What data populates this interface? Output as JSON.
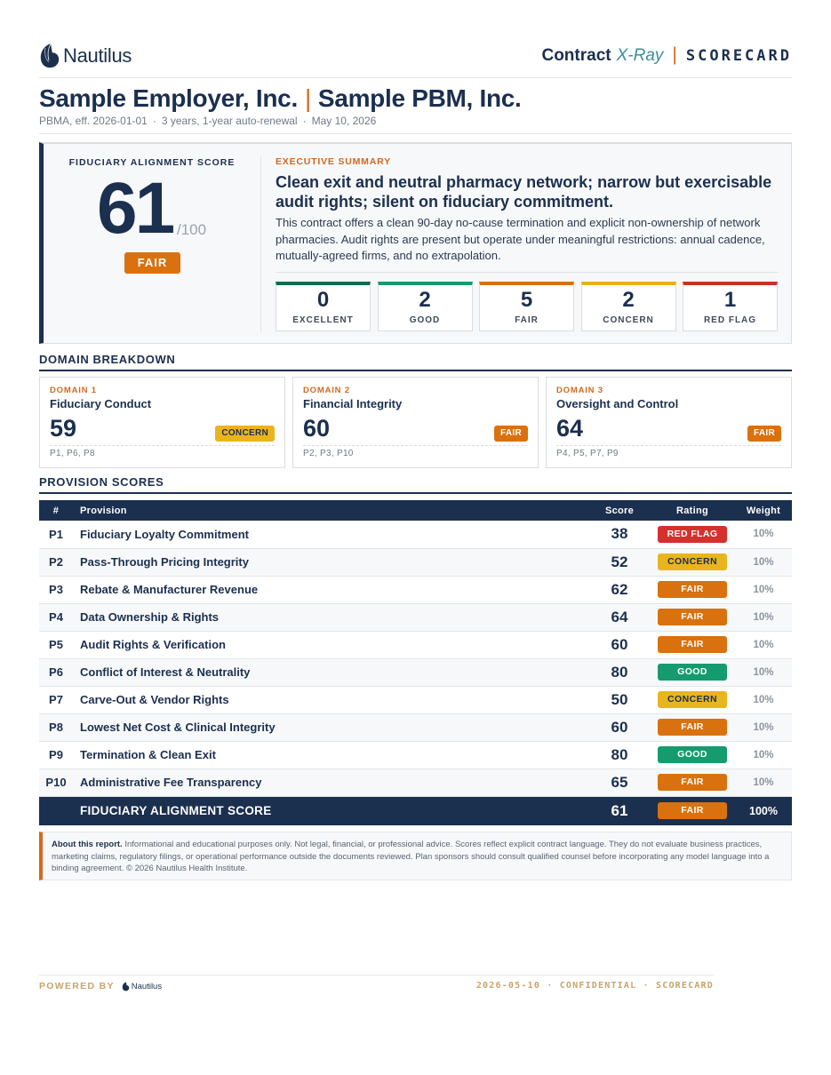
{
  "header": {
    "logo_text": "Nautilus",
    "brand_contract": "Contract",
    "brand_xray": "X-Ray",
    "brand_sep": "|",
    "brand_scorecard": "SCORECARD"
  },
  "title": {
    "employer": "Sample Employer, Inc.",
    "separator": "|",
    "pbm": "Sample PBM, Inc."
  },
  "subtitle": {
    "agreement": "PBMA, eff. 2026-01-01",
    "term": "3 years, 1-year auto-renewal",
    "date": "May 10, 2026",
    "dot": "·"
  },
  "score_hero": {
    "label": "FIDUCIARY ALIGNMENT SCORE",
    "score": "61",
    "denominator": "/100",
    "rating": "FAIR"
  },
  "executive_summary": {
    "label": "EXECUTIVE SUMMARY",
    "headline": "Clean exit and neutral pharmacy network; narrow but exercisable audit rights; silent on fiduciary commitment.",
    "body": "This contract offers a clean 90-day no-cause termination and explicit non-ownership of network pharmacies. Audit rights are present but operate under meaningful restrictions: annual cadence, mutually-agreed firms, and no extrapolation."
  },
  "rating_counts": [
    {
      "count": "0",
      "label": "EXCELLENT",
      "color": "#0e6b4f"
    },
    {
      "count": "2",
      "label": "GOOD",
      "color": "#159a72"
    },
    {
      "count": "5",
      "label": "FAIR",
      "color": "#d9710f"
    },
    {
      "count": "2",
      "label": "CONCERN",
      "color": "#e6b020"
    },
    {
      "count": "1",
      "label": "RED FLAG",
      "color": "#c9302c"
    }
  ],
  "domain_section": {
    "title": "DOMAIN BREAKDOWN",
    "domains": [
      {
        "num": "DOMAIN 1",
        "name": "Fiduciary Conduct",
        "score": "59",
        "rating": "CONCERN",
        "provisions": "P1, P6, P8"
      },
      {
        "num": "DOMAIN 2",
        "name": "Financial Integrity",
        "score": "60",
        "rating": "FAIR",
        "provisions": "P2, P3, P10"
      },
      {
        "num": "DOMAIN 3",
        "name": "Oversight and Control",
        "score": "64",
        "rating": "FAIR",
        "provisions": "P4, P5, P7, P9"
      }
    ]
  },
  "provision_section": {
    "title": "PROVISION SCORES",
    "headers": {
      "num": "#",
      "name": "Provision",
      "score": "Score",
      "rating": "Rating",
      "weight": "Weight"
    },
    "rows": [
      {
        "id": "P1",
        "name": "Fiduciary Loyalty Commitment",
        "score": "38",
        "rating": "RED FLAG",
        "weight": "10%"
      },
      {
        "id": "P2",
        "name": "Pass-Through Pricing Integrity",
        "score": "52",
        "rating": "CONCERN",
        "weight": "10%"
      },
      {
        "id": "P3",
        "name": "Rebate & Manufacturer Revenue",
        "score": "62",
        "rating": "FAIR",
        "weight": "10%"
      },
      {
        "id": "P4",
        "name": "Data Ownership & Rights",
        "score": "64",
        "rating": "FAIR",
        "weight": "10%"
      },
      {
        "id": "P5",
        "name": "Audit Rights & Verification",
        "score": "60",
        "rating": "FAIR",
        "weight": "10%"
      },
      {
        "id": "P6",
        "name": "Conflict of Interest & Neutrality",
        "score": "80",
        "rating": "GOOD",
        "weight": "10%"
      },
      {
        "id": "P7",
        "name": "Carve-Out & Vendor Rights",
        "score": "50",
        "rating": "CONCERN",
        "weight": "10%"
      },
      {
        "id": "P8",
        "name": "Lowest Net Cost & Clinical Integrity",
        "score": "60",
        "rating": "FAIR",
        "weight": "10%"
      },
      {
        "id": "P9",
        "name": "Termination & Clean Exit",
        "score": "80",
        "rating": "GOOD",
        "weight": "10%"
      },
      {
        "id": "P10",
        "name": "Administrative Fee Transparency",
        "score": "65",
        "rating": "FAIR",
        "weight": "10%"
      }
    ],
    "total": {
      "name": "FIDUCIARY ALIGNMENT SCORE",
      "score": "61",
      "rating": "FAIR",
      "weight": "100%"
    }
  },
  "rating_colors": {
    "RED FLAG": {
      "bg": "#d6302c",
      "fg": "#ffffff"
    },
    "CONCERN": {
      "bg": "#e8b51e",
      "fg": "#1b2f4f"
    },
    "FAIR": {
      "bg": "#d9710f",
      "fg": "#ffffff"
    },
    "GOOD": {
      "bg": "#169b6f",
      "fg": "#ffffff"
    },
    "EXCELLENT": {
      "bg": "#0e6b4f",
      "fg": "#ffffff"
    }
  },
  "disclaimer": {
    "title": "About this report.",
    "text": "Informational and educational purposes only. Not legal, financial, or professional advice. Scores reflect explicit contract language. They do not evaluate business practices, marketing claims, regulatory filings, or operational performance outside the documents reviewed. Plan sponsors should consult qualified counsel before incorporating any model language into a binding agreement. © 2026 Nautilus Health Institute."
  },
  "footer": {
    "powered_by": "POWERED BY",
    "logo_text": "Nautilus",
    "right": "2026-05-10 · CONFIDENTIAL · SCORECARD"
  }
}
